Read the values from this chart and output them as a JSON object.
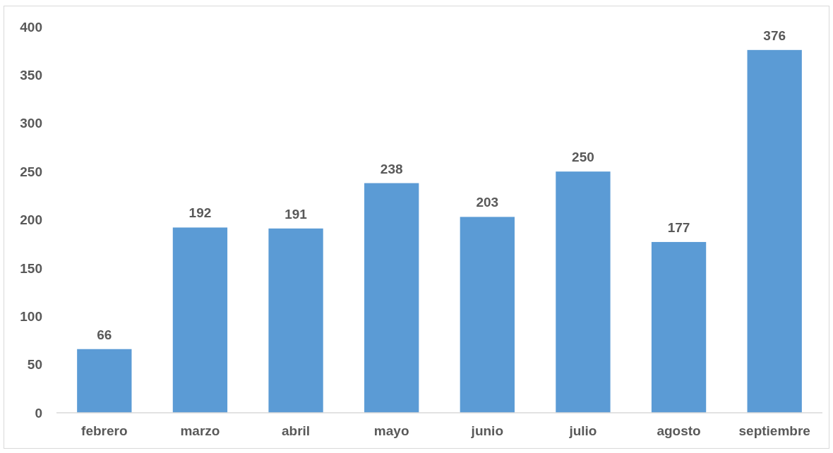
{
  "chart_data": {
    "type": "bar",
    "categories": [
      "febrero",
      "marzo",
      "abril",
      "mayo",
      "junio",
      "julio",
      "agosto",
      "septiembre"
    ],
    "values": [
      66,
      192,
      191,
      238,
      203,
      250,
      177,
      376
    ],
    "color": "#5b9bd5",
    "ylim": [
      0,
      400
    ],
    "yticks": [
      0,
      50,
      100,
      150,
      200,
      250,
      300,
      350,
      400
    ],
    "data_labels": true
  }
}
